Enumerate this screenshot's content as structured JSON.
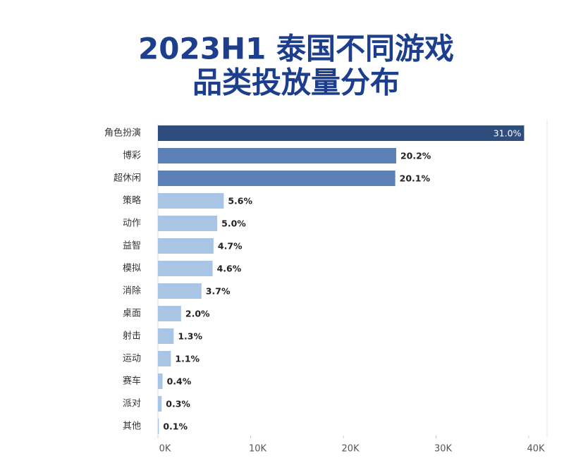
{
  "chart_data": {
    "type": "bar",
    "orientation": "horizontal",
    "title": [
      "2023H1 泰国不同游戏",
      "品类投放量分布"
    ],
    "categories": [
      "角色扮演",
      "博彩",
      "超休闲",
      "策略",
      "动作",
      "益智",
      "模拟",
      "消除",
      "桌面",
      "射击",
      "运动",
      "赛车",
      "派对",
      "其他"
    ],
    "values": [
      39500,
      25700,
      25600,
      7100,
      6400,
      6000,
      5900,
      4700,
      2500,
      1700,
      1400,
      500,
      400,
      100
    ],
    "value_labels": [
      "31.0%",
      "20.2%",
      "20.1%",
      "5.6%",
      "5.0%",
      "4.7%",
      "4.6%",
      "3.7%",
      "2.0%",
      "1.3%",
      "1.1%",
      "0.4%",
      "0.3%",
      "0.1%"
    ],
    "colors": [
      "#2f4d7c",
      "#5b7fb6",
      "#5b7fb6",
      "#a8c5e6",
      "#a8c5e6",
      "#a8c5e6",
      "#a8c5e6",
      "#a8c5e6",
      "#a8c5e6",
      "#a8c5e6",
      "#a8c5e6",
      "#a8c5e6",
      "#a8c5e6",
      "#a8c5e6"
    ],
    "xlim": [
      0,
      40000
    ],
    "xticks": [
      {
        "value": 0,
        "label": "0K"
      },
      {
        "value": 10000,
        "label": "10K"
      },
      {
        "value": 20000,
        "label": "20K"
      },
      {
        "value": 30000,
        "label": "30K"
      },
      {
        "value": 40000,
        "label": "40K"
      }
    ]
  }
}
